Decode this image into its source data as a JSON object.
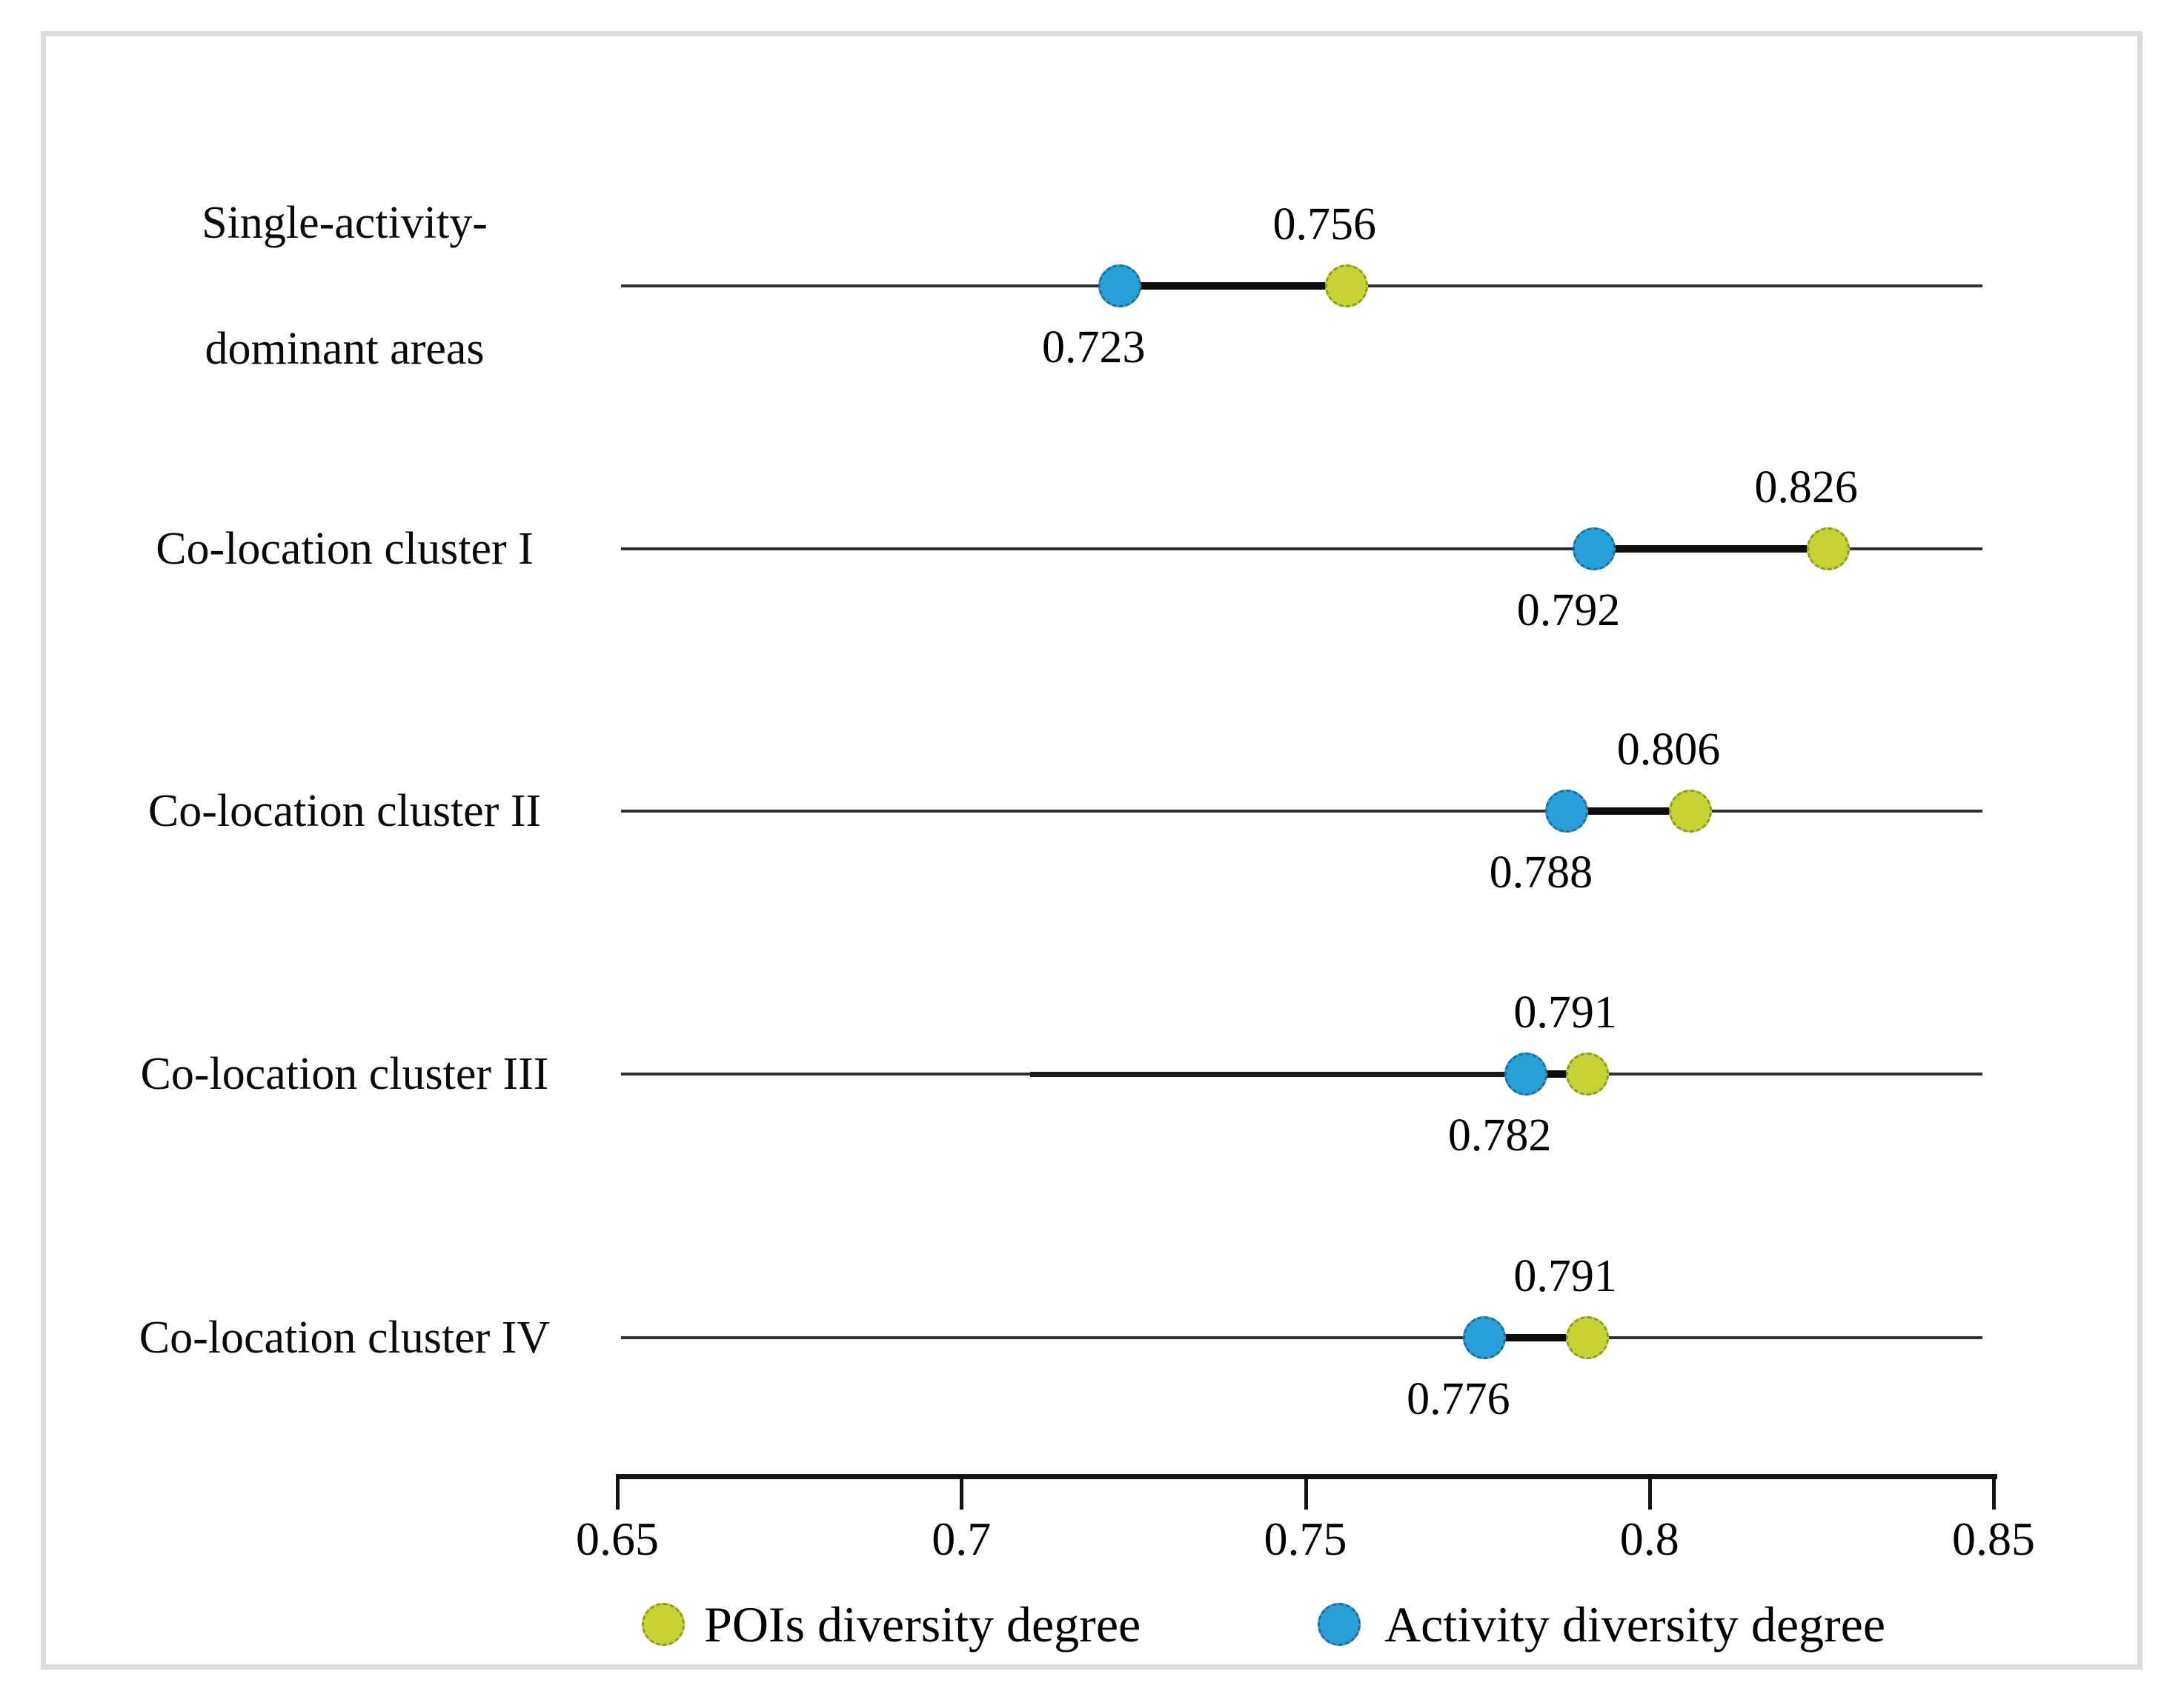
{
  "chart_data": {
    "type": "scatter",
    "subtype": "dumbbell-dot-plot",
    "title": "",
    "xlabel": "",
    "ylabel": "",
    "grid": false,
    "legend_position": "bottom",
    "x_axis": {
      "min": 0.65,
      "max": 0.85,
      "ticks": [
        0.65,
        0.7,
        0.75,
        0.8,
        0.85
      ],
      "tick_labels": [
        "0.65",
        "0.7",
        "0.75",
        "0.8",
        "0.85"
      ]
    },
    "categories": [
      "Single-activity-dominant areas",
      "Co-location cluster I",
      "Co-location cluster II",
      "Co-location cluster III",
      "Co-location cluster IV"
    ],
    "category_label_lines": [
      [
        "Single-activity-",
        "dominant areas"
      ],
      [
        "Co-location cluster I"
      ],
      [
        "Co-location cluster II"
      ],
      [
        "Co-location cluster III"
      ],
      [
        "Co-location cluster IV"
      ]
    ],
    "series": [
      {
        "name": "POIs diversity degree",
        "color": "#c7d235",
        "border_color": "#8f9c23",
        "label_position": "above",
        "values": [
          0.756,
          0.826,
          0.806,
          0.791,
          0.791
        ],
        "value_labels": [
          "0.756",
          "0.826",
          "0.806",
          "0.791",
          "0.791"
        ]
      },
      {
        "name": "Activity diversity degree",
        "color": "#2aa0d8",
        "border_color": "#1b6f9e",
        "label_position": "below",
        "values": [
          0.723,
          0.792,
          0.788,
          0.782,
          0.776
        ],
        "value_labels": [
          "0.723",
          "0.792",
          "0.788",
          "0.782",
          "0.776"
        ]
      }
    ],
    "legend": [
      {
        "label": "POIs diversity degree",
        "color": "#c7d235"
      },
      {
        "label": "Activity diversity degree",
        "color": "#2aa0d8"
      }
    ]
  }
}
